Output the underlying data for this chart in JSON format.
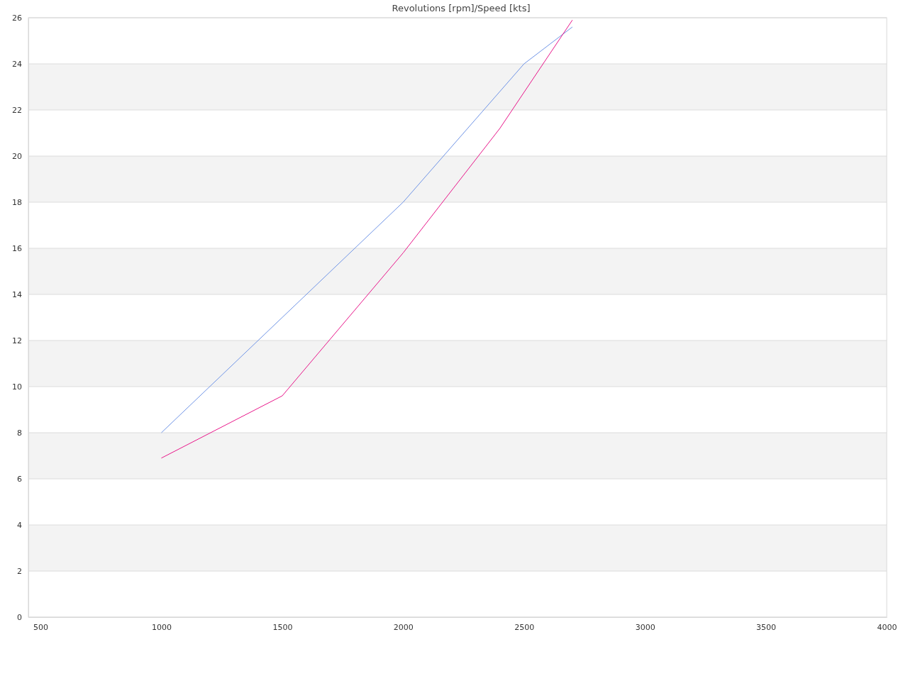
{
  "chart_data": {
    "type": "line",
    "title": "Revolutions [rpm]/Speed [kts]",
    "xlim": [
      450,
      4000
    ],
    "xticks": [
      500,
      1000,
      1500,
      2000,
      2500,
      3000,
      3500,
      4000
    ],
    "ylim": [
      0,
      26
    ],
    "yticks": [
      0,
      2,
      4,
      6,
      8,
      10,
      12,
      14,
      16,
      18,
      20,
      22,
      24,
      26
    ],
    "grid": "y",
    "marker": "none",
    "line_style": "solid",
    "series": [
      {
        "color": "#6f94e6",
        "x": [
          1000,
          1500,
          2000,
          2500,
          2700
        ],
        "values": [
          8,
          13,
          18,
          24,
          25.6
        ]
      },
      {
        "color": "#e8178a",
        "x": [
          1000,
          1500,
          2000,
          2400,
          2700
        ],
        "values": [
          6.9,
          9.6,
          15.8,
          21.2,
          25.9
        ]
      }
    ]
  }
}
